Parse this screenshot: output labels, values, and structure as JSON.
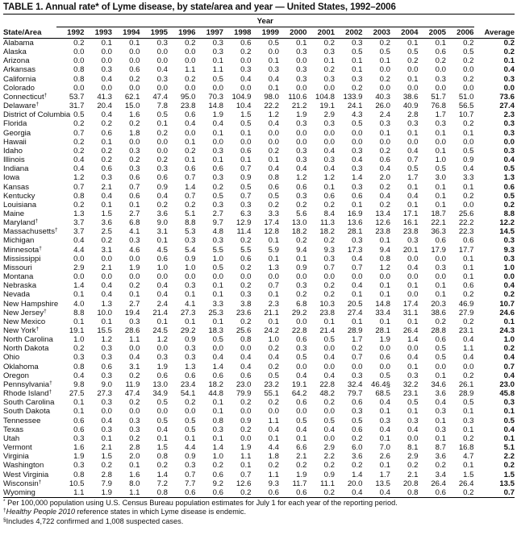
{
  "title": "TABLE 1. Annual rate* of Lyme disease, by state/area and year — United States, 1992–2006",
  "header": {
    "year_label": "Year",
    "state_label": "State/Area",
    "years": [
      "1992",
      "1993",
      "1994",
      "1995",
      "1996",
      "1997",
      "1998",
      "1999",
      "2000",
      "2001",
      "2002",
      "2003",
      "2004",
      "2005",
      "2006"
    ],
    "average_label": "Average"
  },
  "rows": [
    {
      "state": "Alabama",
      "mark": "",
      "values": [
        "0.2",
        "0.1",
        "0.1",
        "0.3",
        "0.2",
        "0.3",
        "0.6",
        "0.5",
        "0.1",
        "0.2",
        "0.3",
        "0.2",
        "0.1",
        "0.1",
        "0.2"
      ],
      "avg": "0.2"
    },
    {
      "state": "Alaska",
      "mark": "",
      "values": [
        "0.0",
        "0.0",
        "0.0",
        "0.0",
        "0.0",
        "0.3",
        "0.2",
        "0.0",
        "0.3",
        "0.3",
        "0.5",
        "0.5",
        "0.5",
        "0.6",
        "0.5"
      ],
      "avg": "0.2"
    },
    {
      "state": "Arizona",
      "mark": "",
      "values": [
        "0.0",
        "0.0",
        "0.0",
        "0.0",
        "0.0",
        "0.1",
        "0.0",
        "0.1",
        "0.0",
        "0.1",
        "0.1",
        "0.1",
        "0.2",
        "0.2",
        "0.2"
      ],
      "avg": "0.1"
    },
    {
      "state": "Arkansas",
      "mark": "",
      "values": [
        "0.8",
        "0.3",
        "0.6",
        "0.4",
        "1.1",
        "1.1",
        "0.3",
        "0.3",
        "0.3",
        "0.2",
        "0.1",
        "0.0",
        "0.0",
        "0.0",
        "0.0"
      ],
      "avg": "0.4"
    },
    {
      "state": "California",
      "mark": "",
      "values": [
        "0.8",
        "0.4",
        "0.2",
        "0.3",
        "0.2",
        "0.5",
        "0.4",
        "0.4",
        "0.3",
        "0.3",
        "0.3",
        "0.2",
        "0.1",
        "0.3",
        "0.2"
      ],
      "avg": "0.3"
    },
    {
      "state": "Colorado",
      "mark": "",
      "values": [
        "0.0",
        "0.0",
        "0.0",
        "0.0",
        "0.0",
        "0.0",
        "0.0",
        "0.1",
        "0.0",
        "0.0",
        "0.2",
        "0.0",
        "0.0",
        "0.0",
        "0.0"
      ],
      "avg": "0.0"
    },
    {
      "state": "Connecticut",
      "mark": "†",
      "values": [
        "53.7",
        "41.3",
        "62.1",
        "47.4",
        "95.0",
        "70.3",
        "104.9",
        "98.0",
        "110.6",
        "104.8",
        "133.9",
        "40.3",
        "38.6",
        "51.7",
        "51.0"
      ],
      "avg": "73.6"
    },
    {
      "state": "Delaware",
      "mark": "†",
      "values": [
        "31.7",
        "20.4",
        "15.0",
        "7.8",
        "23.8",
        "14.8",
        "10.4",
        "22.2",
        "21.2",
        "19.1",
        "24.1",
        "26.0",
        "40.9",
        "76.8",
        "56.5"
      ],
      "avg": "27.4"
    },
    {
      "state": "District of Columbia",
      "mark": "",
      "values": [
        "0.5",
        "0.4",
        "1.6",
        "0.5",
        "0.6",
        "1.9",
        "1.5",
        "1.2",
        "1.9",
        "2.9",
        "4.3",
        "2.4",
        "2.8",
        "1.7",
        "10.7"
      ],
      "avg": "2.3"
    },
    {
      "state": "Florida",
      "mark": "",
      "values": [
        "0.2",
        "0.2",
        "0.2",
        "0.1",
        "0.4",
        "0.4",
        "0.5",
        "0.4",
        "0.3",
        "0.3",
        "0.5",
        "0.3",
        "0.3",
        "0.3",
        "0.2"
      ],
      "avg": "0.3"
    },
    {
      "state": "Georgia",
      "mark": "",
      "values": [
        "0.7",
        "0.6",
        "1.8",
        "0.2",
        "0.0",
        "0.1",
        "0.1",
        "0.0",
        "0.0",
        "0.0",
        "0.0",
        "0.1",
        "0.1",
        "0.1",
        "0.1"
      ],
      "avg": "0.3"
    },
    {
      "state": "Hawaii",
      "mark": "",
      "values": [
        "0.2",
        "0.1",
        "0.0",
        "0.0",
        "0.1",
        "0.0",
        "0.0",
        "0.0",
        "0.0",
        "0.0",
        "0.0",
        "0.0",
        "0.0",
        "0.0",
        "0.0"
      ],
      "avg": "0.0"
    },
    {
      "state": "Idaho",
      "mark": "",
      "values": [
        "0.2",
        "0.2",
        "0.3",
        "0.0",
        "0.2",
        "0.3",
        "0.6",
        "0.2",
        "0.3",
        "0.4",
        "0.3",
        "0.2",
        "0.4",
        "0.1",
        "0.5"
      ],
      "avg": "0.3"
    },
    {
      "state": "Illinois",
      "mark": "",
      "values": [
        "0.4",
        "0.2",
        "0.2",
        "0.2",
        "0.1",
        "0.1",
        "0.1",
        "0.1",
        "0.3",
        "0.3",
        "0.4",
        "0.6",
        "0.7",
        "1.0",
        "0.9"
      ],
      "avg": "0.4"
    },
    {
      "state": "Indiana",
      "mark": "",
      "values": [
        "0.4",
        "0.6",
        "0.3",
        "0.3",
        "0.6",
        "0.6",
        "0.7",
        "0.4",
        "0.4",
        "0.4",
        "0.3",
        "0.4",
        "0.5",
        "0.5",
        "0.4"
      ],
      "avg": "0.5"
    },
    {
      "state": "Iowa",
      "mark": "",
      "values": [
        "1.2",
        "0.3",
        "0.6",
        "0.6",
        "0.7",
        "0.3",
        "0.9",
        "0.8",
        "1.2",
        "1.2",
        "1.4",
        "2.0",
        "1.7",
        "3.0",
        "3.3"
      ],
      "avg": "1.3"
    },
    {
      "state": "Kansas",
      "mark": "",
      "values": [
        "0.7",
        "2.1",
        "0.7",
        "0.9",
        "1.4",
        "0.2",
        "0.5",
        "0.6",
        "0.6",
        "0.1",
        "0.3",
        "0.2",
        "0.1",
        "0.1",
        "0.1"
      ],
      "avg": "0.6"
    },
    {
      "state": "Kentucky",
      "mark": "",
      "values": [
        "0.8",
        "0.4",
        "0.6",
        "0.4",
        "0.7",
        "0.5",
        "0.7",
        "0.5",
        "0.3",
        "0.6",
        "0.6",
        "0.4",
        "0.4",
        "0.1",
        "0.2"
      ],
      "avg": "0.5"
    },
    {
      "state": "Louisiana",
      "mark": "",
      "values": [
        "0.2",
        "0.1",
        "0.1",
        "0.2",
        "0.2",
        "0.3",
        "0.3",
        "0.2",
        "0.2",
        "0.2",
        "0.1",
        "0.2",
        "0.1",
        "0.1",
        "0.0"
      ],
      "avg": "0.2"
    },
    {
      "state": "Maine",
      "mark": "",
      "values": [
        "1.3",
        "1.5",
        "2.7",
        "3.6",
        "5.1",
        "2.7",
        "6.3",
        "3.3",
        "5.6",
        "8.4",
        "16.9",
        "13.4",
        "17.1",
        "18.7",
        "25.6"
      ],
      "avg": "8.8"
    },
    {
      "state": "Maryland",
      "mark": "†",
      "values": [
        "3.7",
        "3.6",
        "6.8",
        "9.0",
        "8.8",
        "9.7",
        "12.9",
        "17.4",
        "13.0",
        "11.3",
        "13.6",
        "12.6",
        "16.1",
        "22.1",
        "22.2"
      ],
      "avg": "12.2"
    },
    {
      "state": "Massachusetts",
      "mark": "†",
      "values": [
        "3.7",
        "2.5",
        "4.1",
        "3.1",
        "5.3",
        "4.8",
        "11.4",
        "12.8",
        "18.2",
        "18.2",
        "28.1",
        "23.8",
        "23.8",
        "36.3",
        "22.3"
      ],
      "avg": "14.5"
    },
    {
      "state": "Michigan",
      "mark": "",
      "values": [
        "0.4",
        "0.2",
        "0.3",
        "0.1",
        "0.3",
        "0.3",
        "0.2",
        "0.1",
        "0.2",
        "0.2",
        "0.3",
        "0.1",
        "0.3",
        "0.6",
        "0.6"
      ],
      "avg": "0.3"
    },
    {
      "state": "Minnesota",
      "mark": "†",
      "values": [
        "4.4",
        "3.1",
        "4.6",
        "4.5",
        "5.4",
        "5.5",
        "5.5",
        "5.9",
        "9.4",
        "9.3",
        "17.3",
        "9.4",
        "20.1",
        "17.9",
        "17.7"
      ],
      "avg": "9.3"
    },
    {
      "state": "Mississippi",
      "mark": "",
      "values": [
        "0.0",
        "0.0",
        "0.0",
        "0.6",
        "0.9",
        "1.0",
        "0.6",
        "0.1",
        "0.1",
        "0.3",
        "0.4",
        "0.8",
        "0.0",
        "0.0",
        "0.1"
      ],
      "avg": "0.3"
    },
    {
      "state": "Missouri",
      "mark": "",
      "values": [
        "2.9",
        "2.1",
        "1.9",
        "1.0",
        "1.0",
        "0.5",
        "0.2",
        "1.3",
        "0.9",
        "0.7",
        "0.7",
        "1.2",
        "0.4",
        "0.3",
        "0.1"
      ],
      "avg": "1.0"
    },
    {
      "state": "Montana",
      "mark": "",
      "values": [
        "0.0",
        "0.0",
        "0.0",
        "0.0",
        "0.0",
        "0.0",
        "0.0",
        "0.0",
        "0.0",
        "0.0",
        "0.0",
        "0.0",
        "0.0",
        "0.0",
        "0.1"
      ],
      "avg": "0.0"
    },
    {
      "state": "Nebraska",
      "mark": "",
      "values": [
        "1.4",
        "0.4",
        "0.2",
        "0.4",
        "0.3",
        "0.1",
        "0.2",
        "0.7",
        "0.3",
        "0.2",
        "0.4",
        "0.1",
        "0.1",
        "0.1",
        "0.6"
      ],
      "avg": "0.4"
    },
    {
      "state": "Nevada",
      "mark": "",
      "values": [
        "0.1",
        "0.4",
        "0.1",
        "0.4",
        "0.1",
        "0.1",
        "0.3",
        "0.1",
        "0.2",
        "0.2",
        "0.1",
        "0.1",
        "0.0",
        "0.1",
        "0.2"
      ],
      "avg": "0.2"
    },
    {
      "state": "New Hampshire",
      "mark": "",
      "values": [
        "4.0",
        "1.3",
        "2.7",
        "2.4",
        "4.1",
        "3.3",
        "3.8",
        "2.3",
        "6.8",
        "10.3",
        "20.5",
        "14.8",
        "17.4",
        "20.3",
        "46.9"
      ],
      "avg": "10.7"
    },
    {
      "state": "New Jersey",
      "mark": "†",
      "values": [
        "8.8",
        "10.0",
        "19.4",
        "21.4",
        "27.3",
        "25.3",
        "23.6",
        "21.1",
        "29.2",
        "23.8",
        "27.4",
        "33.4",
        "31.1",
        "38.6",
        "27.9"
      ],
      "avg": "24.6"
    },
    {
      "state": "New Mexico",
      "mark": "",
      "values": [
        "0.1",
        "0.1",
        "0.3",
        "0.1",
        "0.1",
        "0.1",
        "0.2",
        "0.1",
        "0.0",
        "0.1",
        "0.1",
        "0.1",
        "0.1",
        "0.2",
        "0.2"
      ],
      "avg": "0.1"
    },
    {
      "state": "New York",
      "mark": "†",
      "values": [
        "19.1",
        "15.5",
        "28.6",
        "24.5",
        "29.2",
        "18.3",
        "25.6",
        "24.2",
        "22.8",
        "21.4",
        "28.9",
        "28.1",
        "26.4",
        "28.8",
        "23.1"
      ],
      "avg": "24.3"
    },
    {
      "state": "North Carolina",
      "mark": "",
      "values": [
        "1.0",
        "1.2",
        "1.1",
        "1.2",
        "0.9",
        "0.5",
        "0.8",
        "1.0",
        "0.6",
        "0.5",
        "1.7",
        "1.9",
        "1.4",
        "0.6",
        "0.4"
      ],
      "avg": "1.0"
    },
    {
      "state": "North Dakota",
      "mark": "",
      "values": [
        "0.2",
        "0.3",
        "0.0",
        "0.0",
        "0.3",
        "0.0",
        "0.0",
        "0.2",
        "0.3",
        "0.0",
        "0.2",
        "0.0",
        "0.0",
        "0.5",
        "1.1"
      ],
      "avg": "0.2"
    },
    {
      "state": "Ohio",
      "mark": "",
      "values": [
        "0.3",
        "0.3",
        "0.4",
        "0.3",
        "0.3",
        "0.4",
        "0.4",
        "0.4",
        "0.5",
        "0.4",
        "0.7",
        "0.6",
        "0.4",
        "0.5",
        "0.4"
      ],
      "avg": "0.4"
    },
    {
      "state": "Oklahoma",
      "mark": "",
      "values": [
        "0.8",
        "0.6",
        "3.1",
        "1.9",
        "1.3",
        "1.4",
        "0.4",
        "0.2",
        "0.0",
        "0.0",
        "0.0",
        "0.0",
        "0.1",
        "0.0",
        "0.0"
      ],
      "avg": "0.7"
    },
    {
      "state": "Oregon",
      "mark": "",
      "values": [
        "0.4",
        "0.3",
        "0.2",
        "0.6",
        "0.6",
        "0.6",
        "0.6",
        "0.5",
        "0.4",
        "0.4",
        "0.3",
        "0.5",
        "0.3",
        "0.1",
        "0.2"
      ],
      "avg": "0.4"
    },
    {
      "state": "Pennsylvania",
      "mark": "†",
      "values": [
        "9.8",
        "9.0",
        "11.9",
        "13.0",
        "23.4",
        "18.2",
        "23.0",
        "23.2",
        "19.1",
        "22.8",
        "32.4",
        "46.4§",
        "32.2",
        "34.6",
        "26.1"
      ],
      "avg": "23.0"
    },
    {
      "state": "Rhode Island",
      "mark": "†",
      "values": [
        "27.5",
        "27.3",
        "47.4",
        "34.9",
        "54.1",
        "44.8",
        "79.9",
        "55.1",
        "64.2",
        "48.2",
        "79.7",
        "68.5",
        "23.1",
        "3.6",
        "28.9"
      ],
      "avg": "45.8"
    },
    {
      "state": "South Carolina",
      "mark": "",
      "values": [
        "0.1",
        "0.3",
        "0.2",
        "0.5",
        "0.2",
        "0.1",
        "0.2",
        "0.2",
        "0.6",
        "0.2",
        "0.6",
        "0.4",
        "0.5",
        "0.4",
        "0.5"
      ],
      "avg": "0.3"
    },
    {
      "state": "South Dakota",
      "mark": "",
      "values": [
        "0.1",
        "0.0",
        "0.0",
        "0.0",
        "0.0",
        "0.1",
        "0.0",
        "0.0",
        "0.0",
        "0.0",
        "0.3",
        "0.1",
        "0.1",
        "0.3",
        "0.1"
      ],
      "avg": "0.1"
    },
    {
      "state": "Tennessee",
      "mark": "",
      "values": [
        "0.6",
        "0.4",
        "0.3",
        "0.5",
        "0.5",
        "0.8",
        "0.9",
        "1.1",
        "0.5",
        "0.5",
        "0.5",
        "0.3",
        "0.3",
        "0.1",
        "0.3"
      ],
      "avg": "0.5"
    },
    {
      "state": "Texas",
      "mark": "",
      "values": [
        "0.6",
        "0.3",
        "0.3",
        "0.4",
        "0.5",
        "0.3",
        "0.2",
        "0.4",
        "0.4",
        "0.4",
        "0.6",
        "0.4",
        "0.4",
        "0.3",
        "0.1"
      ],
      "avg": "0.4"
    },
    {
      "state": "Utah",
      "mark": "",
      "values": [
        "0.3",
        "0.1",
        "0.2",
        "0.1",
        "0.1",
        "0.1",
        "0.0",
        "0.1",
        "0.1",
        "0.0",
        "0.2",
        "0.1",
        "0.0",
        "0.1",
        "0.2"
      ],
      "avg": "0.1"
    },
    {
      "state": "Vermont",
      "mark": "",
      "values": [
        "1.6",
        "2.1",
        "2.8",
        "1.5",
        "4.4",
        "1.4",
        "1.9",
        "4.4",
        "6.6",
        "2.9",
        "6.0",
        "7.0",
        "8.1",
        "8.7",
        "16.8"
      ],
      "avg": "5.1"
    },
    {
      "state": "Virginia",
      "mark": "",
      "values": [
        "1.9",
        "1.5",
        "2.0",
        "0.8",
        "0.9",
        "1.0",
        "1.1",
        "1.8",
        "2.1",
        "2.2",
        "3.6",
        "2.6",
        "2.9",
        "3.6",
        "4.7"
      ],
      "avg": "2.2"
    },
    {
      "state": "Washington",
      "mark": "",
      "values": [
        "0.3",
        "0.2",
        "0.1",
        "0.2",
        "0.3",
        "0.2",
        "0.1",
        "0.2",
        "0.2",
        "0.2",
        "0.2",
        "0.1",
        "0.2",
        "0.2",
        "0.1"
      ],
      "avg": "0.2"
    },
    {
      "state": "West Virginia",
      "mark": "",
      "values": [
        "0.8",
        "2.8",
        "1.6",
        "1.4",
        "0.7",
        "0.6",
        "0.7",
        "1.1",
        "1.9",
        "0.9",
        "1.4",
        "1.7",
        "2.1",
        "3.4",
        "1.5"
      ],
      "avg": "1.5"
    },
    {
      "state": "Wisconsin",
      "mark": "†",
      "values": [
        "10.5",
        "7.9",
        "8.0",
        "7.2",
        "7.7",
        "9.2",
        "12.6",
        "9.3",
        "11.7",
        "11.1",
        "20.0",
        "13.5",
        "20.8",
        "26.4",
        "26.4"
      ],
      "avg": "13.5"
    },
    {
      "state": "Wyoming",
      "mark": "",
      "values": [
        "1.1",
        "1.9",
        "1.1",
        "0.8",
        "0.6",
        "0.6",
        "0.2",
        "0.6",
        "0.6",
        "0.2",
        "0.4",
        "0.4",
        "0.8",
        "0.6",
        "0.2"
      ],
      "avg": "0.7"
    }
  ],
  "footnotes": [
    {
      "mark": "*",
      "text": " Per 100,000 population using U.S. Census Bureau population estimates for July 1 for each year of the reporting period."
    },
    {
      "mark": "†",
      "italic": "Healthy People 2010",
      "text": " reference states in which Lyme disease is endemic."
    },
    {
      "mark": "§",
      "text": "Includes 4,722 confirmed and 1,008 suspected cases."
    }
  ]
}
